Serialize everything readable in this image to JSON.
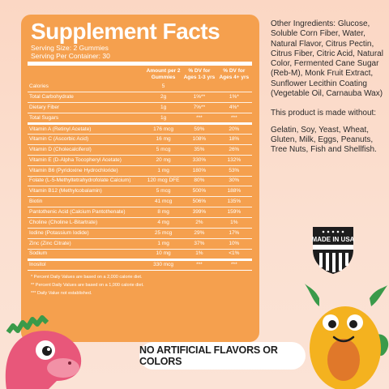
{
  "facts": {
    "title": "Supplement Facts",
    "serving_size": "Serving Size: 2 Gummies",
    "servings_per_container": "Serving Per Container: 30",
    "headers": {
      "amount": "Amount per 2 Gummies",
      "dv_child": "% DV for Ages 1-3 yrs",
      "dv_adult": "% DV for Ages 4+ yrs"
    },
    "rows": [
      {
        "name": "Calories",
        "amount": "5",
        "dv1": "",
        "dv2": ""
      },
      {
        "name": "Total Carbohydrate",
        "amount": "2g",
        "dv1": "1%**",
        "dv2": "1%*"
      },
      {
        "name": "Dietary Fiber",
        "amount": "1g",
        "dv1": "7%**",
        "dv2": "4%*"
      },
      {
        "name": "Total Sugars",
        "amount": "1g",
        "dv1": "***",
        "dv2": "***"
      },
      {
        "name": "Vitamin A (Retinyl Acetate)",
        "amount": "176 mcg",
        "dv1": "59%",
        "dv2": "20%"
      },
      {
        "name": "Vitamin C (Ascorbic Acid)",
        "amount": "16 mg",
        "dv1": "108%",
        "dv2": "18%"
      },
      {
        "name": "Vitamin D (Cholecalciferol)",
        "amount": "5 mcg",
        "dv1": "35%",
        "dv2": "26%"
      },
      {
        "name": "Vitamin E (D-Alpha Tocopheryl Acetate)",
        "amount": "20 mg",
        "dv1": "330%",
        "dv2": "132%"
      },
      {
        "name": "Vitamin B6 (Pyridoxine Hydrochloride)",
        "amount": "1 mg",
        "dv1": "180%",
        "dv2": "53%"
      },
      {
        "name": "Folate (L-5-Methyltetrahydrofolate Calcium)",
        "amount": "120 mcg DFE",
        "dv1": "80%",
        "dv2": "30%"
      },
      {
        "name": "Vitamin B12 (Methylcobalamin)",
        "amount": "5 mcg",
        "dv1": "500%",
        "dv2": "188%"
      },
      {
        "name": "Biotin",
        "amount": "41 mcg",
        "dv1": "506%",
        "dv2": "135%"
      },
      {
        "name": "Pantothenic Acid (Calcium Pantothenate)",
        "amount": "8 mg",
        "dv1": "399%",
        "dv2": "159%"
      },
      {
        "name": "Choline (Choline L-Bitartrate)",
        "amount": "4 mg",
        "dv1": "2%",
        "dv2": "1%"
      },
      {
        "name": "Iodine (Potassium Iodide)",
        "amount": "25 mcg",
        "dv1": "29%",
        "dv2": "17%"
      },
      {
        "name": "Zinc (Zinc Citrate)",
        "amount": "1 mg",
        "dv1": "37%",
        "dv2": "10%"
      },
      {
        "name": "Sodium",
        "amount": "10 mg",
        "dv1": "1%",
        "dv2": "<1%"
      },
      {
        "name": "Inositol",
        "amount": "330 mcg",
        "dv1": "***",
        "dv2": "***"
      }
    ],
    "footnotes": [
      "* Percent Daily Values are based on a 2,000 calorie diet.",
      "** Percent Daily Values are based on a 1,000 calorie diet.",
      "*** Daily Value not established."
    ]
  },
  "ingredients": {
    "other": "Other Ingredients: Glucose, Soluble Corn Fiber, Water, Natural Flavor, Citrus Pectin, Citrus Fiber, Citric Acid, Natural Color, Fermented Cane Sugar (Reb-M), Monk Fruit Extract, Sunflower Lecithin Coating (Vegetable Oil, Carnauba Wax)",
    "made_without_intro": "This product is made without:",
    "made_without_list": "Gelatin, Soy, Yeast, Wheat, Gluten, Milk, Eggs, Peanuts, Tree Nuts, Fish and Shellfish."
  },
  "badge": {
    "text": "MADE IN USA"
  },
  "slogan": "NO ARTIFICIAL FLAVORS OR COLORS",
  "colors": {
    "panel": "#f5a04e",
    "background": "#fbd7c4",
    "dino": "#e8577a",
    "monster": "#f4b21f"
  }
}
